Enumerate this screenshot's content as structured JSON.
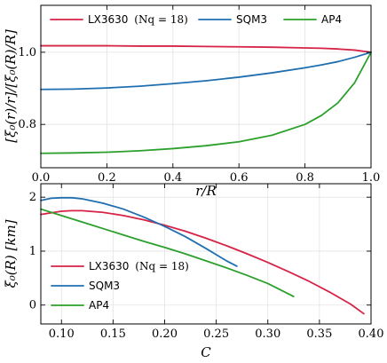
{
  "chart_data": [
    {
      "type": "line",
      "xlabel": "r/R",
      "ylabel": "[ξ₀(r)/r]/[ξ₀(R)/R]",
      "xlim": [
        0.0,
        1.0
      ],
      "ylim": [
        0.68,
        1.13
      ],
      "xticks": [
        0.0,
        0.2,
        0.4,
        0.6,
        0.8,
        1.0
      ],
      "xtick_labels": [
        "0.0",
        "0.2",
        "0.4",
        "0.6",
        "0.8",
        "1.0"
      ],
      "yticks": [
        0.8,
        1.0
      ],
      "ytick_labels": [
        "0.8",
        "1.0"
      ],
      "grid": true,
      "legend_location": "top",
      "x": [
        0.0,
        0.1,
        0.2,
        0.3,
        0.4,
        0.5,
        0.6,
        0.7,
        0.8,
        0.85,
        0.9,
        0.95,
        1.0
      ],
      "series": [
        {
          "name": "LX3630 (N_q = 18)",
          "color": "#d62346",
          "values": [
            1.018,
            1.018,
            1.018,
            1.017,
            1.017,
            1.016,
            1.015,
            1.014,
            1.012,
            1.011,
            1.009,
            1.006,
            1.0
          ]
        },
        {
          "name": "SQM3",
          "color": "#1f6fb0",
          "values": [
            0.897,
            0.898,
            0.901,
            0.906,
            0.913,
            0.921,
            0.931,
            0.943,
            0.957,
            0.965,
            0.974,
            0.986,
            1.0
          ]
        },
        {
          "name": "AP4",
          "color": "#2ca02c",
          "values": [
            0.72,
            0.721,
            0.723,
            0.727,
            0.733,
            0.741,
            0.752,
            0.77,
            0.8,
            0.825,
            0.86,
            0.915,
            1.0
          ]
        }
      ],
      "legend": {
        "entries": [
          {
            "label": "LX3630",
            "suffix": "(Nq = 18)"
          },
          {
            "label": "SQM3"
          },
          {
            "label": "AP4"
          }
        ]
      }
    },
    {
      "type": "line",
      "xlabel": "C",
      "ylabel": "ξ₀(R) [km]",
      "xlim": [
        0.08,
        0.4
      ],
      "ylim": [
        -0.35,
        2.25
      ],
      "xticks": [
        0.1,
        0.15,
        0.2,
        0.25,
        0.3,
        0.35,
        0.4
      ],
      "xtick_labels": [
        "0.10",
        "0.15",
        "0.20",
        "0.25",
        "0.30",
        "0.35",
        "0.40"
      ],
      "yticks": [
        0,
        1,
        2
      ],
      "ytick_labels": [
        "0",
        "1",
        "2"
      ],
      "grid": true,
      "legend_location": "lower left",
      "series": [
        {
          "name": "LX3630 (N_q = 18)",
          "color": "#d62346",
          "x": [
            0.08,
            0.1,
            0.11,
            0.12,
            0.14,
            0.16,
            0.18,
            0.2,
            0.22,
            0.24,
            0.26,
            0.28,
            0.3,
            0.32,
            0.34,
            0.36,
            0.38,
            0.393
          ],
          "y": [
            1.68,
            1.74,
            1.75,
            1.75,
            1.72,
            1.66,
            1.58,
            1.48,
            1.37,
            1.24,
            1.1,
            0.95,
            0.79,
            0.62,
            0.44,
            0.24,
            0.02,
            -0.16
          ]
        },
        {
          "name": "SQM3",
          "color": "#1f6fb0",
          "x": [
            0.08,
            0.09,
            0.1,
            0.105,
            0.11,
            0.12,
            0.14,
            0.16,
            0.18,
            0.2,
            0.22,
            0.24,
            0.26,
            0.27
          ],
          "y": [
            1.94,
            1.98,
            1.99,
            1.99,
            1.99,
            1.97,
            1.89,
            1.78,
            1.63,
            1.46,
            1.27,
            1.05,
            0.82,
            0.72
          ]
        },
        {
          "name": "AP4",
          "color": "#2ca02c",
          "x": [
            0.08,
            0.1,
            0.12,
            0.14,
            0.16,
            0.18,
            0.2,
            0.22,
            0.24,
            0.26,
            0.28,
            0.3,
            0.325
          ],
          "y": [
            1.78,
            1.66,
            1.54,
            1.42,
            1.3,
            1.18,
            1.07,
            0.95,
            0.82,
            0.69,
            0.55,
            0.4,
            0.16
          ]
        }
      ],
      "legend": {
        "entries": [
          {
            "label": "LX3630",
            "suffix": "(Nq = 18)"
          },
          {
            "label": "SQM3"
          },
          {
            "label": "AP4"
          }
        ]
      }
    }
  ]
}
